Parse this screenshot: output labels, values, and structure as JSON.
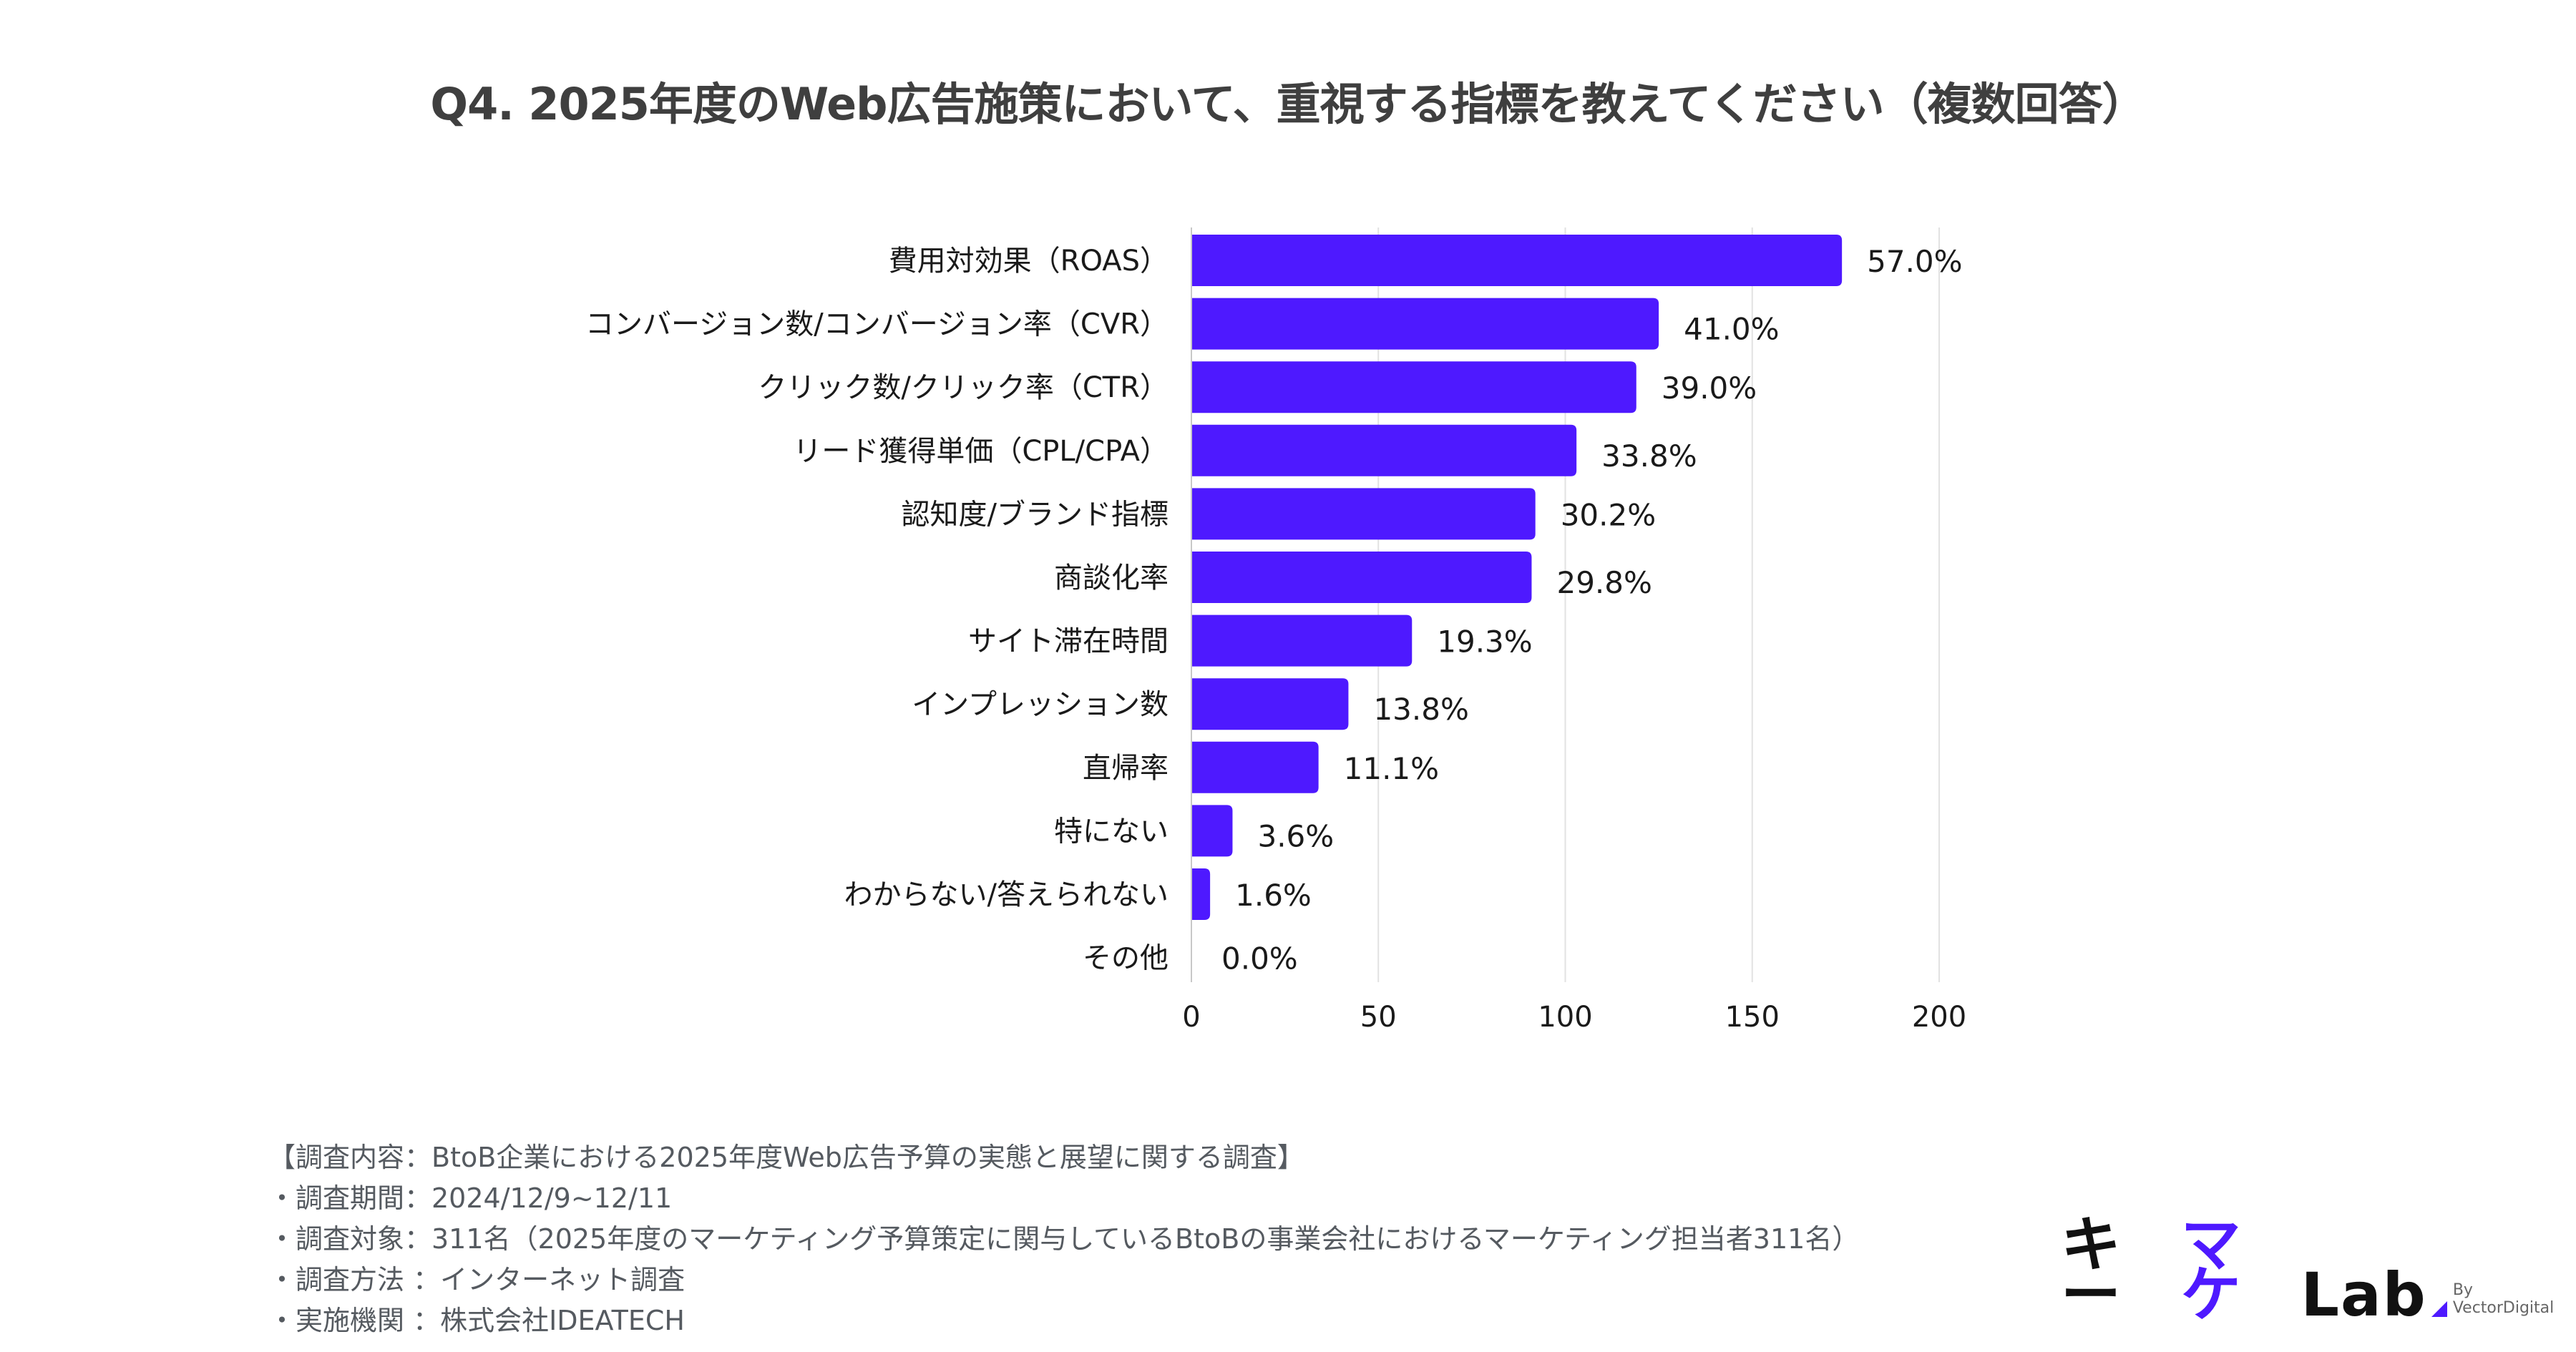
{
  "title": "Q4. 2025年度のWeb広告施策において、重視する指標を教えてください（複数回答）",
  "chart_data": {
    "type": "bar",
    "orientation": "horizontal",
    "title": "Q4. 2025年度のWeb広告施策において、重視する指標を教えてください（複数回答）",
    "xlabel": "",
    "ylabel": "",
    "xlim": [
      0,
      200
    ],
    "xticks": [
      0,
      50,
      100,
      150,
      200
    ],
    "grid": "vertical",
    "legend": "none",
    "bar_color": "#4e19ff",
    "categories": [
      "費用対効果（ROAS）",
      "コンバージョン数/コンバージョン率（CVR）",
      "クリック数/クリック率（CTR）",
      "リード獲得単価（CPL/CPA）",
      "認知度/ブランド指標",
      "商談化率",
      "サイト滞在時間",
      "インプレッション数",
      "直帰率",
      "特にない",
      "わからない/答えられない",
      "その他"
    ],
    "values": [
      174,
      125,
      119,
      103,
      92,
      91,
      59,
      42,
      34,
      11,
      5,
      0
    ],
    "data_labels": [
      "57.0%",
      "41.0%",
      "39.0%",
      "33.8%",
      "30.2%",
      "29.8%",
      "19.3%",
      "13.8%",
      "11.1%",
      "3.6%",
      "1.6%",
      "0.0%"
    ]
  },
  "notes": [
    "【調査内容：BtoB企業における2025年度Web広告予算の実態と展望に関する調査】",
    "・調査期間：2024/12/9~12/11",
    "・調査対象：311名（2025年度のマーケティング予算策定に関与しているBtoBの事業会社におけるマーケティング担当者311名）",
    "・調査方法 ：インターネット調査",
    "・実施機関 ：株式会社IDEATECH"
  ],
  "logo": {
    "part1": "キー",
    "part2": "マケ",
    "part3": "Lab",
    "byline": "By VectorDigital"
  }
}
